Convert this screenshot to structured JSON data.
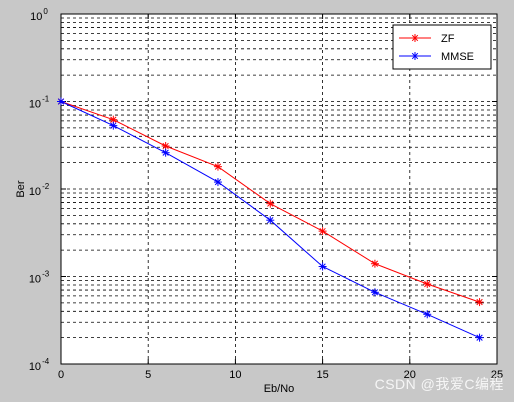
{
  "chart_data": {
    "type": "line",
    "xlabel": "Eb/No",
    "ylabel": "Ber",
    "xlim": [
      0,
      25
    ],
    "ylim": [
      0.0001,
      1
    ],
    "yscale": "log",
    "grid": true,
    "legend_position": "top-right",
    "x_ticks": [
      "0",
      "5",
      "10",
      "15",
      "20",
      "25"
    ],
    "y_tick_exponents": [
      "0",
      "-1",
      "-2",
      "-3",
      "-4"
    ],
    "y_tick_base": "10",
    "x": [
      0,
      3,
      6,
      9,
      12,
      15,
      18,
      21,
      24
    ],
    "series": [
      {
        "name": "ZF",
        "color": "#ff0000",
        "marker": "asterisk",
        "values": [
          0.1,
          0.062,
          0.031,
          0.018,
          0.0068,
          0.0033,
          0.0014,
          0.00082,
          0.00051
        ]
      },
      {
        "name": "MMSE",
        "color": "#0000ff",
        "marker": "asterisk",
        "values": [
          0.1,
          0.053,
          0.026,
          0.012,
          0.0044,
          0.0013,
          0.00066,
          0.00037,
          0.0002
        ]
      }
    ]
  },
  "watermark": "CSDN @我爱C编程"
}
